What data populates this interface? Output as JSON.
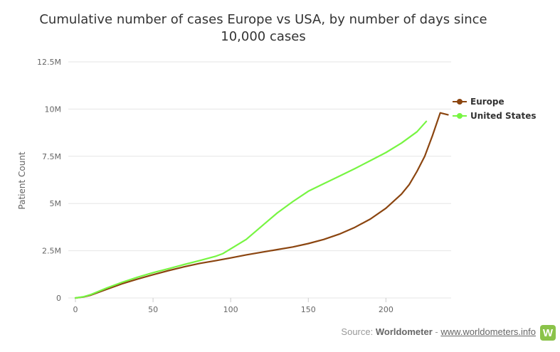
{
  "chart_data": {
    "type": "line",
    "title": "Cumulative number of cases Europe vs USA, by number of days since 10,000 cases",
    "title_lines": [
      "Cumulative number of cases Europe vs USA, by number of days since",
      "10,000 cases"
    ],
    "xlabel": "",
    "ylabel": "Patient Count",
    "xlim": [
      0,
      242
    ],
    "ylim": [
      0,
      12500000
    ],
    "x_ticks": [
      0,
      50,
      100,
      150,
      200
    ],
    "x_tick_labels": [
      "0",
      "50",
      "100",
      "150",
      "200"
    ],
    "y_ticks": [
      0,
      2500000,
      5000000,
      7500000,
      10000000,
      12500000
    ],
    "y_tick_labels": [
      "0",
      "2.5M",
      "5M",
      "7.5M",
      "10M",
      "12.5M"
    ],
    "grid": true,
    "legend_position": "right",
    "series": [
      {
        "name": "Europe",
        "color": "#8b4510",
        "x": [
          0,
          5,
          10,
          20,
          30,
          40,
          50,
          60,
          70,
          80,
          90,
          100,
          110,
          120,
          130,
          140,
          150,
          160,
          170,
          180,
          190,
          200,
          210,
          215,
          220,
          225,
          230,
          235,
          240
        ],
        "y": [
          0,
          50000,
          150000,
          450000,
          750000,
          1000000,
          1230000,
          1450000,
          1650000,
          1830000,
          1970000,
          2120000,
          2280000,
          2420000,
          2560000,
          2700000,
          2880000,
          3100000,
          3380000,
          3740000,
          4180000,
          4750000,
          5500000,
          6000000,
          6700000,
          7500000,
          8600000,
          9800000,
          9700000
        ]
      },
      {
        "name": "United States",
        "color": "#77f542",
        "x": [
          0,
          5,
          10,
          20,
          30,
          40,
          50,
          60,
          70,
          80,
          90,
          95,
          100,
          110,
          120,
          130,
          140,
          150,
          160,
          170,
          180,
          190,
          200,
          210,
          220,
          226
        ],
        "y": [
          0,
          60000,
          180000,
          520000,
          830000,
          1100000,
          1340000,
          1550000,
          1770000,
          1980000,
          2200000,
          2350000,
          2600000,
          3100000,
          3800000,
          4500000,
          5100000,
          5650000,
          6050000,
          6450000,
          6850000,
          7270000,
          7700000,
          8200000,
          8800000,
          9350000
        ]
      }
    ]
  },
  "credit": {
    "prefix": "Source: ",
    "source": "Worldometer",
    "separator": " - ",
    "link": "www.worldometers.info",
    "logo_letter": "W",
    "logo_color": "#8bc34a"
  }
}
